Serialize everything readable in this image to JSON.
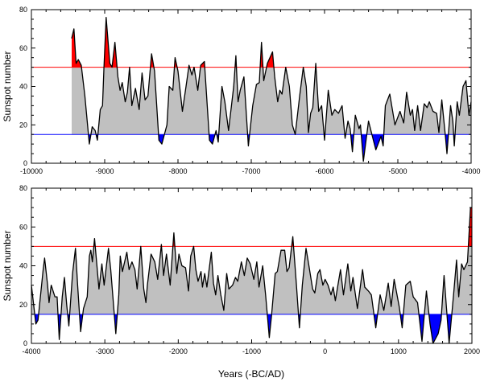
{
  "colors": {
    "fill": "#c0c0c0",
    "high": "#ff0000",
    "low": "#0000ff",
    "line": "#000000"
  },
  "chart_data": [
    {
      "type": "area",
      "title": "",
      "xlabel": "",
      "ylabel": "Sunspot number",
      "xlim": [
        -10000,
        -4000
      ],
      "ylim": [
        0,
        80
      ],
      "xticks": [
        -10000,
        -9000,
        -8000,
        -7000,
        -6000,
        -5000,
        -4000
      ],
      "xtick_labels": [
        "-10000",
        "-9000",
        "-8000",
        "-7000",
        "-6000",
        "-5000",
        "-4000"
      ],
      "yticks": [
        0,
        20,
        40,
        60,
        80
      ],
      "ytick_labels": [
        "0",
        "20",
        "40",
        "60",
        "80"
      ],
      "thresholds": {
        "high": 50,
        "low": 15
      },
      "grid": false,
      "x": [
        -9450,
        -9420,
        -9390,
        -9360,
        -9320,
        -9270,
        -9210,
        -9170,
        -9130,
        -9100,
        -9060,
        -9030,
        -9010,
        -8980,
        -8930,
        -8900,
        -8860,
        -8820,
        -8790,
        -8760,
        -8720,
        -8690,
        -8660,
        -8630,
        -8580,
        -8530,
        -8490,
        -8450,
        -8410,
        -8360,
        -8320,
        -8260,
        -8220,
        -8150,
        -8120,
        -8070,
        -8040,
        -8000,
        -7940,
        -7890,
        -7850,
        -7810,
        -7780,
        -7730,
        -7690,
        -7640,
        -7570,
        -7530,
        -7480,
        -7450,
        -7400,
        -7360,
        -7310,
        -7240,
        -7210,
        -7180,
        -7150,
        -7100,
        -7040,
        -6980,
        -6930,
        -6890,
        -6860,
        -6830,
        -6780,
        -6710,
        -6680,
        -6640,
        -6610,
        -6580,
        -6530,
        -6480,
        -6440,
        -6400,
        -6340,
        -6290,
        -6250,
        -6220,
        -6190,
        -6160,
        -6120,
        -6080,
        -6040,
        -6000,
        -5950,
        -5900,
        -5860,
        -5810,
        -5760,
        -5720,
        -5680,
        -5650,
        -5620,
        -5580,
        -5530,
        -5510,
        -5470,
        -5400,
        -5360,
        -5300,
        -5230,
        -5200,
        -5170,
        -5110,
        -5040,
        -4970,
        -4920,
        -4880,
        -4830,
        -4800,
        -4770,
        -4730,
        -4690,
        -4640,
        -4600,
        -4570,
        -4520,
        -4470,
        -4440,
        -4400,
        -4350,
        -4330,
        -4280,
        -4250,
        -4230,
        -4190,
        -4160,
        -4110,
        -4070,
        -4030,
        -4000
      ],
      "y": [
        65,
        70,
        52,
        54,
        51,
        35,
        10,
        19,
        17,
        12,
        28,
        30,
        50,
        76,
        52,
        50,
        63,
        45,
        38,
        42,
        32,
        37,
        50,
        30,
        39,
        28,
        47,
        33,
        35,
        57,
        48,
        12,
        10,
        20,
        40,
        38,
        55,
        48,
        27,
        40,
        51,
        46,
        50,
        38,
        51,
        53,
        12,
        10,
        17,
        11,
        40,
        32,
        17,
        40,
        56,
        32,
        38,
        45,
        9,
        30,
        41,
        42,
        63,
        43,
        52,
        58,
        45,
        32,
        38,
        36,
        50,
        40,
        20,
        15,
        35,
        50,
        40,
        16,
        26,
        29,
        52,
        27,
        30,
        12,
        38,
        25,
        28,
        26,
        30,
        13,
        22,
        18,
        6,
        25,
        18,
        20,
        1,
        22,
        16,
        7,
        14,
        9,
        30,
        36,
        20,
        27,
        21,
        37,
        25,
        28,
        17,
        30,
        17,
        31,
        29,
        32,
        27,
        26,
        16,
        33,
        14,
        5,
        30,
        22,
        9,
        32,
        25,
        40,
        43,
        25,
        32
      ]
    },
    {
      "type": "area",
      "title": "",
      "xlabel": "Years (-BC/AD)",
      "ylabel": "Sunspot number",
      "xlim": [
        -4000,
        2000
      ],
      "ylim": [
        0,
        80
      ],
      "xticks": [
        -4000,
        -3000,
        -2000,
        -1000,
        0,
        1000,
        2000
      ],
      "xtick_labels": [
        "-4000",
        "-3000",
        "-2000",
        "-1000",
        "0",
        "1000",
        "2000"
      ],
      "yticks": [
        0,
        20,
        40,
        60,
        80
      ],
      "ytick_labels": [
        "0",
        "20",
        "40",
        "60",
        "80"
      ],
      "thresholds": {
        "high": 50,
        "low": 15
      },
      "grid": false,
      "x": [
        -4000,
        -3940,
        -3910,
        -3840,
        -3820,
        -3780,
        -3760,
        -3730,
        -3680,
        -3650,
        -3620,
        -3580,
        -3550,
        -3520,
        -3490,
        -3440,
        -3400,
        -3370,
        -3330,
        -3290,
        -3240,
        -3210,
        -3190,
        -3170,
        -3140,
        -3080,
        -3040,
        -3010,
        -2950,
        -2920,
        -2850,
        -2810,
        -2790,
        -2760,
        -2700,
        -2670,
        -2630,
        -2590,
        -2560,
        -2510,
        -2470,
        -2440,
        -2420,
        -2370,
        -2320,
        -2280,
        -2230,
        -2200,
        -2160,
        -2110,
        -2060,
        -2020,
        -1990,
        -1950,
        -1900,
        -1860,
        -1830,
        -1790,
        -1760,
        -1730,
        -1690,
        -1670,
        -1640,
        -1610,
        -1550,
        -1520,
        -1490,
        -1460,
        -1420,
        -1380,
        -1340,
        -1310,
        -1260,
        -1220,
        -1190,
        -1140,
        -1100,
        -1060,
        -1020,
        -970,
        -930,
        -900,
        -850,
        -810,
        -760,
        -730,
        -680,
        -650,
        -600,
        -550,
        -520,
        -490,
        -440,
        -390,
        -350,
        -310,
        -260,
        -220,
        -170,
        -140,
        -100,
        -70,
        -30,
        0,
        40,
        80,
        110,
        140,
        210,
        250,
        310,
        350,
        380,
        440,
        510,
        540,
        590,
        630,
        690,
        750,
        800,
        860,
        900,
        940,
        1010,
        1050,
        1100,
        1160,
        1200,
        1260,
        1320,
        1380,
        1430,
        1470,
        1540,
        1580,
        1620,
        1690,
        1750,
        1790,
        1820,
        1860,
        1890,
        1940,
        1980,
        2000
      ],
      "y": [
        30,
        10,
        12,
        38,
        44,
        30,
        21,
        30,
        24,
        24,
        2,
        24,
        34,
        20,
        9,
        36,
        49,
        30,
        6,
        18,
        24,
        45,
        48,
        42,
        54,
        28,
        41,
        30,
        49,
        38,
        5,
        25,
        45,
        37,
        47,
        38,
        42,
        38,
        28,
        50,
        28,
        21,
        30,
        46,
        42,
        33,
        51,
        35,
        46,
        30,
        57,
        36,
        46,
        40,
        39,
        27,
        45,
        50,
        38,
        32,
        37,
        29,
        36,
        29,
        47,
        31,
        25,
        35,
        25,
        17,
        36,
        28,
        30,
        34,
        32,
        42,
        35,
        44,
        41,
        33,
        42,
        29,
        40,
        25,
        3,
        14,
        36,
        37,
        48,
        48,
        37,
        39,
        55,
        30,
        8,
        30,
        49,
        40,
        28,
        26,
        36,
        38,
        30,
        33,
        30,
        25,
        29,
        22,
        38,
        25,
        41,
        27,
        34,
        18,
        38,
        29,
        27,
        25,
        8,
        25,
        17,
        31,
        19,
        33,
        19,
        8,
        30,
        32,
        24,
        21,
        1,
        27,
        10,
        0,
        5,
        12,
        35,
        0,
        25,
        43,
        24,
        41,
        38,
        42,
        70,
        70
      ]
    }
  ]
}
